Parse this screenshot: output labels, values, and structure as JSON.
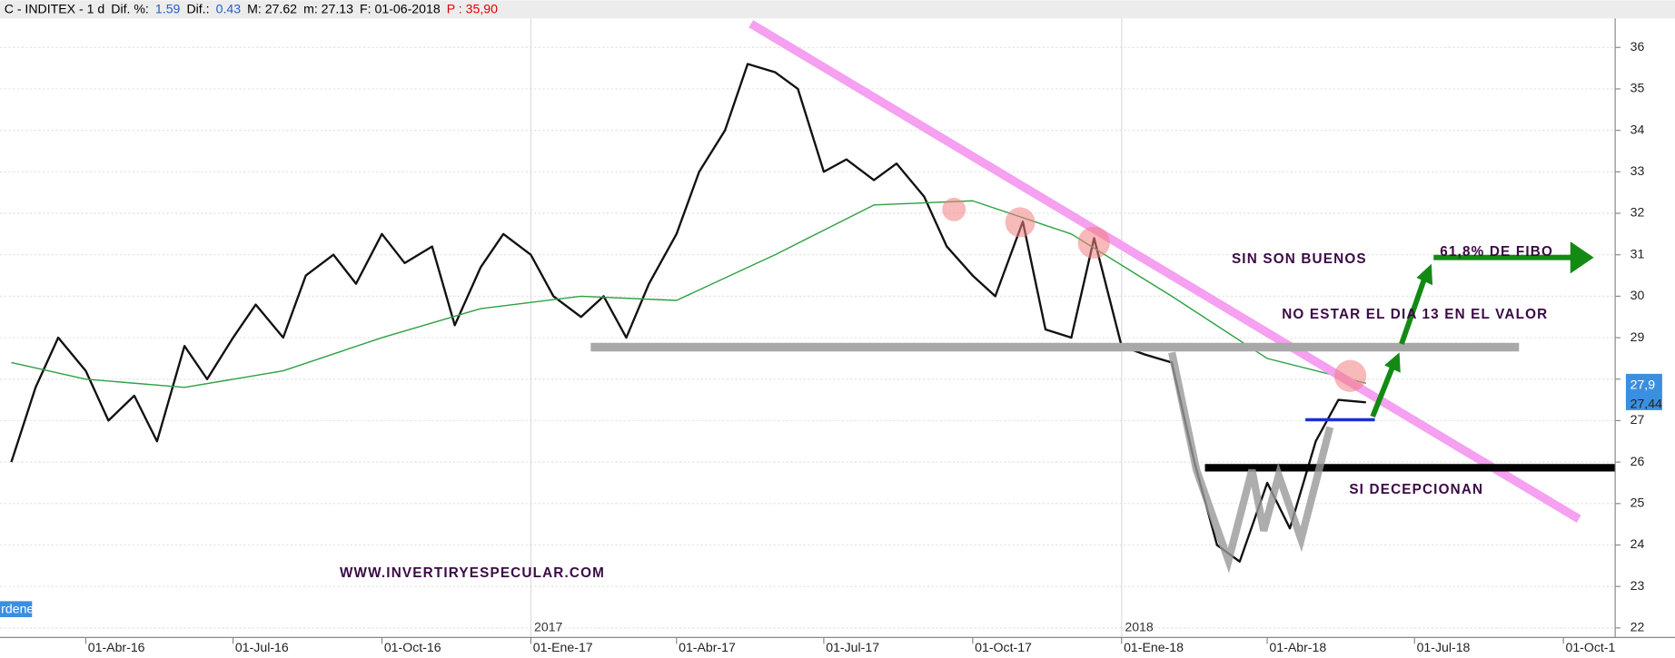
{
  "chart_data": {
    "type": "line",
    "header": [
      {
        "text": "C - INDITEX - 1 d",
        "color": "#000000"
      },
      {
        "text": "Dif. %:",
        "color": "#000000"
      },
      {
        "text": "1.59",
        "color": "#1f5fd0"
      },
      {
        "text": "Dif.:",
        "color": "#000000"
      },
      {
        "text": "0.43",
        "color": "#1f5fd0"
      },
      {
        "text": "M: 27.62",
        "color": "#000000"
      },
      {
        "text": "m: 27.13",
        "color": "#000000"
      },
      {
        "text": "F: 01-06-2018",
        "color": "#000000"
      },
      {
        "text": "P : 35,90",
        "color": "#e00000"
      }
    ],
    "annotations": [
      "SIN SON BUENOS",
      "61,8% DE FIBO",
      "NO ESTAR EL DIA 13 EN EL VALOR",
      "SI DECEPCIONAN",
      "WWW.INVERTIRYESPECULAR.COM"
    ],
    "year_labels": [
      "2017",
      "2018"
    ],
    "price_labels": [
      "27,9",
      "27,44"
    ],
    "badge": "rdenes",
    "series": [
      {
        "color": "#111111",
        "x": [
          "15-Feb-16",
          "01-Mar-16",
          "15-Mar-16",
          "01-Abr-16",
          "15-Abr-16",
          "01-May-16",
          "15-May-16",
          "01-Jun-16",
          "15-Jun-16",
          "01-Jul-16",
          "15-Jul-16",
          "01-Ago-16",
          "15-Ago-16",
          "01-Sep-16",
          "15-Sep-16",
          "01-Oct-16",
          "15-Oct-16",
          "01-Nov-16",
          "15-Nov-16",
          "01-Dic-16",
          "15-Dic-16",
          "01-Ene-17",
          "15-Ene-17",
          "01-Feb-17",
          "15-Feb-17",
          "01-Mar-17",
          "15-Mar-17",
          "01-Abr-17",
          "15-Abr-17",
          "01-May-17",
          "15-May-17",
          "01-Jun-17",
          "15-Jun-17",
          "01-Jul-17",
          "15-Jul-17",
          "01-Ago-17",
          "15-Ago-17",
          "01-Sep-17",
          "15-Sep-17",
          "01-Oct-17",
          "15-Oct-17",
          "01-Nov-17",
          "15-Nov-17",
          "01-Dic-17",
          "15-Dic-17",
          "01-Ene-18",
          "15-Ene-18",
          "01-Feb-18",
          "15-Feb-18",
          "01-Mar-18",
          "15-Mar-18",
          "01-Abr-18",
          "15-Abr-18",
          "01-May-18",
          "15-May-18",
          "01-Jun-18"
        ],
        "values": [
          26.0,
          27.8,
          29.0,
          28.2,
          27.0,
          27.6,
          26.5,
          28.8,
          28.0,
          29.0,
          29.8,
          29.0,
          30.5,
          31.0,
          30.3,
          31.5,
          30.8,
          31.2,
          29.3,
          30.7,
          31.5,
          31.0,
          30.0,
          29.5,
          30.0,
          29.0,
          30.3,
          31.5,
          33.0,
          34.0,
          35.6,
          35.4,
          35.0,
          33.0,
          33.3,
          32.8,
          33.2,
          32.4,
          31.2,
          30.5,
          30.0,
          31.8,
          29.2,
          29.0,
          31.4,
          28.8,
          28.6,
          28.4,
          26.0,
          24.0,
          23.6,
          25.5,
          24.4,
          26.5,
          27.5,
          27.44
        ]
      },
      {
        "color": "#2ea043",
        "x": [
          "15-Feb-16",
          "01-Abr-16",
          "01-Jun-16",
          "01-Ago-16",
          "01-Oct-16",
          "01-Dic-16",
          "01-Feb-17",
          "01-Abr-17",
          "01-Jun-17",
          "01-Ago-17",
          "01-Oct-17",
          "01-Dic-17",
          "01-Feb-18",
          "01-Abr-18",
          "01-Jun-18"
        ],
        "values": [
          28.4,
          28.0,
          27.8,
          28.2,
          29.0,
          29.7,
          30.0,
          29.9,
          31.0,
          32.2,
          32.3,
          31.5,
          30.0,
          28.5,
          27.9
        ]
      }
    ],
    "xlim": [
      "08-Feb-16",
      "02-Nov-18"
    ],
    "xticks": [
      "01-Abr-16",
      "01-Jul-16",
      "01-Oct-16",
      "01-Ene-17",
      "01-Abr-17",
      "01-Jul-17",
      "01-Oct-17",
      "01-Ene-18",
      "01-Abr-18",
      "01-Jul-18",
      {
        "value": "01-Oct-18",
        "label": "01-Oct-1"
      }
    ],
    "ylim": [
      21.77,
      36.7
    ],
    "yticks": [
      22,
      23,
      24,
      25,
      26,
      27,
      28,
      29,
      30,
      31,
      32,
      33,
      34,
      35,
      36
    ],
    "grid": true
  }
}
